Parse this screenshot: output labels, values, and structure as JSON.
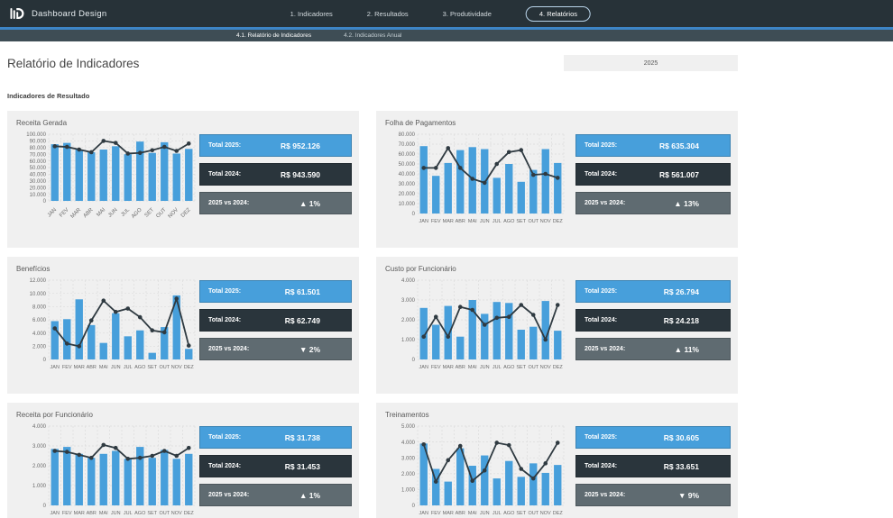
{
  "colors": {
    "navbar_bg": "#273238",
    "subnav_bg": "#3e4d55",
    "accent_blue": "#3d85c6",
    "bar_blue": "#479fdb",
    "line_dark": "#2f3a41",
    "stat_blue_bg": "#479fdb",
    "stat_dark_bg": "#2a353c",
    "stat_gray_bg": "#5f6b71",
    "card_bg": "#f0f0f0",
    "page_bg": "#ffffff"
  },
  "nav": {
    "brand": "Dashboard Design",
    "brand_icon": "dashboard-logo-icon",
    "items": [
      {
        "label": "1. Indicadores",
        "active": false
      },
      {
        "label": "2. Resultados",
        "active": false
      },
      {
        "label": "3. Produtividade",
        "active": false
      },
      {
        "label": "4. Relatórios",
        "active": true
      }
    ]
  },
  "subnav": {
    "items": [
      {
        "label": "4.1. Relatório de Indicadores",
        "active": true
      },
      {
        "label": "4.2. Indicadores Anual",
        "active": false
      }
    ]
  },
  "page": {
    "title": "Relatório de Indicadores",
    "year_selector": "2025",
    "section_title": "Indicadores de Resultado"
  },
  "stat_labels": {
    "total_2025": "Total 2025:",
    "total_2024": "Total 2024:",
    "vs": "2025 vs 2024:"
  },
  "months": [
    "JAN",
    "FEV",
    "MAR",
    "ABR",
    "MAI",
    "JUN",
    "JUL",
    "AGO",
    "SET",
    "OUT",
    "NOV",
    "DEZ"
  ],
  "cards": [
    {
      "title": "Receita Gerada",
      "chart_data": {
        "type": "bar",
        "categories": [
          "JAN",
          "FEV",
          "MAR",
          "ABR",
          "MAI",
          "JUN",
          "JUL",
          "AGO",
          "SET",
          "OUT",
          "NOV",
          "DEZ"
        ],
        "bars": [
          85000,
          87000,
          77000,
          73000,
          77000,
          82000,
          70000,
          89000,
          72000,
          88000,
          71000,
          78000
        ],
        "line": [
          82000,
          81000,
          77000,
          73000,
          90000,
          87000,
          71000,
          72000,
          76000,
          81000,
          75000,
          86000
        ],
        "ylim": [
          0,
          100000
        ],
        "ytick_step": 10000,
        "grid": true,
        "x_labels_rotated": true
      },
      "stats": {
        "total_2025": "R$ 952.126",
        "total_2024": "R$ 943.590",
        "vs": "▲ 1%"
      }
    },
    {
      "title": "Folha de Pagamentos",
      "chart_data": {
        "type": "bar",
        "categories": [
          "JAN",
          "FEV",
          "MAR",
          "ABR",
          "MAI",
          "JUN",
          "JUL",
          "AGO",
          "SET",
          "OUT",
          "NOV",
          "DEZ"
        ],
        "bars": [
          68000,
          38000,
          51000,
          64000,
          67000,
          65000,
          36000,
          50000,
          32000,
          44000,
          65000,
          51000
        ],
        "line": [
          46000,
          46000,
          66000,
          46000,
          35000,
          31000,
          50000,
          62000,
          64000,
          39000,
          40000,
          36000
        ],
        "ylim": [
          0,
          80000
        ],
        "ytick_step": 10000,
        "grid": true,
        "x_labels_rotated": false
      },
      "stats": {
        "total_2025": "R$ 635.304",
        "total_2024": "R$ 561.007",
        "vs": "▲ 13%"
      }
    },
    {
      "title": "Benefícios",
      "chart_data": {
        "type": "bar",
        "categories": [
          "JAN",
          "FEV",
          "MAR",
          "ABR",
          "MAI",
          "JUN",
          "JUL",
          "AGO",
          "SET",
          "OUT",
          "NOV",
          "DEZ"
        ],
        "bars": [
          5800,
          6100,
          9100,
          5200,
          2500,
          7000,
          3500,
          4400,
          1000,
          4900,
          9700,
          1600
        ],
        "line": [
          4700,
          2400,
          2000,
          5900,
          8900,
          7200,
          7700,
          6400,
          4400,
          4100,
          9200,
          2100
        ],
        "ylim": [
          0,
          12000
        ],
        "ytick_step": 2000,
        "grid": true,
        "x_labels_rotated": false
      },
      "stats": {
        "total_2025": "R$ 61.501",
        "total_2024": "R$ 62.749",
        "vs": "▼ 2%"
      }
    },
    {
      "title": "Custo por Funcionário",
      "chart_data": {
        "type": "bar",
        "categories": [
          "JAN",
          "FEV",
          "MAR",
          "ABR",
          "MAI",
          "JUN",
          "JUL",
          "AGO",
          "SET",
          "OUT",
          "NOV",
          "DEZ"
        ],
        "bars": [
          2600,
          1750,
          2700,
          1150,
          3000,
          2300,
          2900,
          2850,
          1500,
          1650,
          2950,
          1450
        ],
        "line": [
          1150,
          2150,
          1150,
          2650,
          2500,
          1750,
          2100,
          2150,
          2750,
          2250,
          1000,
          2750
        ],
        "ylim": [
          0,
          4000
        ],
        "ytick_step": 1000,
        "grid": true,
        "x_labels_rotated": false
      },
      "stats": {
        "total_2025": "R$ 26.794",
        "total_2024": "R$ 24.218",
        "vs": "▲ 11%"
      }
    },
    {
      "title": "Receita por Funcionário",
      "chart_data": {
        "type": "bar",
        "categories": [
          "JAN",
          "FEV",
          "MAR",
          "ABR",
          "MAI",
          "JUN",
          "JUL",
          "AGO",
          "SET",
          "OUT",
          "NOV",
          "DEZ"
        ],
        "bars": [
          2850,
          2950,
          2600,
          2400,
          2600,
          2750,
          2350,
          2950,
          2400,
          2800,
          2350,
          2600
        ],
        "line": [
          2750,
          2700,
          2550,
          2400,
          3050,
          2900,
          2350,
          2400,
          2500,
          2750,
          2500,
          2900
        ],
        "ylim": [
          0,
          4000
        ],
        "ytick_step": 1000,
        "grid": true,
        "x_labels_rotated": false
      },
      "stats": {
        "total_2025": "R$ 31.738",
        "total_2024": "R$ 31.453",
        "vs": "▲ 1%"
      }
    },
    {
      "title": "Treinamentos",
      "chart_data": {
        "type": "bar",
        "categories": [
          "JAN",
          "FEV",
          "MAR",
          "ABR",
          "MAI",
          "JUN",
          "JUL",
          "AGO",
          "SET",
          "OUT",
          "NOV",
          "DEZ"
        ],
        "bars": [
          3900,
          2300,
          1500,
          3600,
          2500,
          3150,
          1700,
          2800,
          1800,
          2650,
          2050,
          2550
        ],
        "line": [
          3850,
          1500,
          2850,
          3750,
          1550,
          2200,
          3950,
          3800,
          2300,
          1700,
          2650,
          3950
        ],
        "ylim": [
          0,
          5000
        ],
        "ytick_step": 1000,
        "grid": true,
        "x_labels_rotated": false
      },
      "stats": {
        "total_2025": "R$ 30.605",
        "total_2024": "R$ 33.651",
        "vs": "▼ 9%"
      }
    }
  ]
}
